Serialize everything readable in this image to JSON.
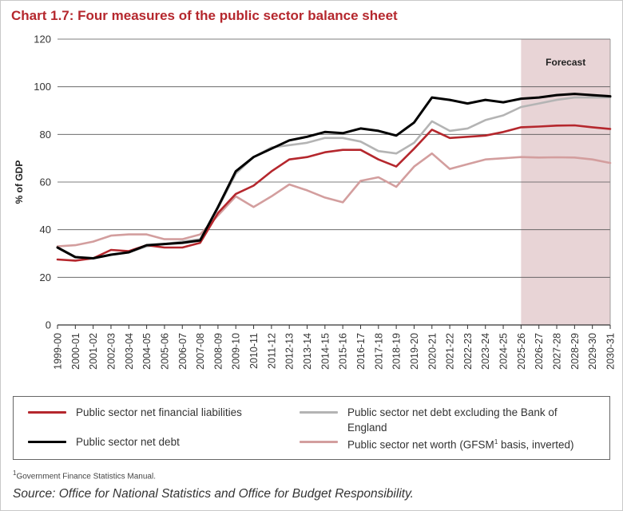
{
  "title": "Chart 1.7: Four measures of the public sector balance sheet",
  "chart_data": {
    "type": "line",
    "title": "Chart 1.7: Four measures of the public sector balance sheet",
    "xlabel": "",
    "ylabel": "% of GDP",
    "ylim": [
      0,
      120
    ],
    "yticks": [
      0,
      20,
      40,
      60,
      80,
      100,
      120
    ],
    "grid": true,
    "forecast_label": "Forecast",
    "forecast_start": "2025-26",
    "forecast_end": "2030-31",
    "categories": [
      "1999-00",
      "2000-01",
      "2001-02",
      "2002-03",
      "2003-04",
      "2004-05",
      "2005-06",
      "2006-07",
      "2007-08",
      "2008-09",
      "2009-10",
      "2010-11",
      "2011-12",
      "2012-13",
      "2013-14",
      "2014-15",
      "2015-16",
      "2016-17",
      "2017-18",
      "2018-19",
      "2019-20",
      "2020-21",
      "2021-22",
      "2022-23",
      "2023-24",
      "2024-25",
      "2025-26",
      "2026-27",
      "2027-28",
      "2028-29",
      "2029-30",
      "2030-31"
    ],
    "series": [
      {
        "name": "Public sector net financial liabilities",
        "color": "#b5272d",
        "values": [
          27.5,
          27,
          28,
          31.5,
          31,
          33.5,
          32.5,
          32.5,
          34.5,
          47,
          55,
          58.5,
          64.5,
          69.5,
          70.5,
          72.5,
          73.5,
          73.5,
          69.5,
          66.5,
          74,
          82,
          78.5,
          79,
          79.5,
          81,
          83,
          83.3,
          83.7,
          83.8,
          83,
          82.3
        ]
      },
      {
        "name": "Public sector net debt excluding the Bank of England",
        "color": "#b4b4b4",
        "values": [
          32.5,
          28.5,
          28,
          29.5,
          30.5,
          33,
          34,
          35,
          36,
          49,
          63.5,
          70.5,
          74.5,
          75.5,
          76.5,
          78.5,
          78.5,
          77,
          73,
          72,
          76.5,
          85.5,
          81.5,
          82.5,
          86,
          88,
          91.5,
          93,
          94.5,
          95.5,
          95.5,
          95.5
        ]
      },
      {
        "name": "Public sector net debt",
        "color": "#000000",
        "values": [
          32.5,
          28.5,
          28,
          29.5,
          30.5,
          33.5,
          34,
          34.5,
          35.5,
          49.5,
          64.5,
          70.5,
          74,
          77.5,
          79,
          81,
          80.5,
          82.5,
          81.5,
          79.5,
          85,
          95.5,
          94.5,
          93,
          94.5,
          93.5,
          95,
          95.5,
          96.5,
          97,
          96.5,
          96
        ]
      },
      {
        "name": "Public sector net worth (GFSM basis, inverted)",
        "color": "#d39e9e",
        "values": [
          33,
          33.5,
          35,
          37.5,
          38,
          38,
          36,
          36,
          38,
          46,
          54,
          49.5,
          54,
          59,
          56.5,
          53.5,
          51.5,
          60.5,
          62,
          58,
          66.5,
          72,
          65.5,
          67.5,
          69.5,
          70,
          70.5,
          70.3,
          70.4,
          70.3,
          69.5,
          68
        ]
      }
    ]
  },
  "legend": {
    "items": [
      {
        "text": "Public sector net financial liabilities",
        "color": "#b5272d"
      },
      {
        "text": "Public sector net debt excluding the Bank of England",
        "color": "#b4b4b4"
      },
      {
        "text": "Public sector net debt",
        "color": "#000000"
      },
      {
        "text": "Public sector net worth (GFSM",
        "sup": "1",
        "text_after": " basis, inverted)",
        "color": "#d39e9e"
      }
    ]
  },
  "footnote": {
    "sup": "1",
    "text": "Government Finance Statistics Manual."
  },
  "source": "Source: Office for National Statistics and Office for Budget Responsibility."
}
